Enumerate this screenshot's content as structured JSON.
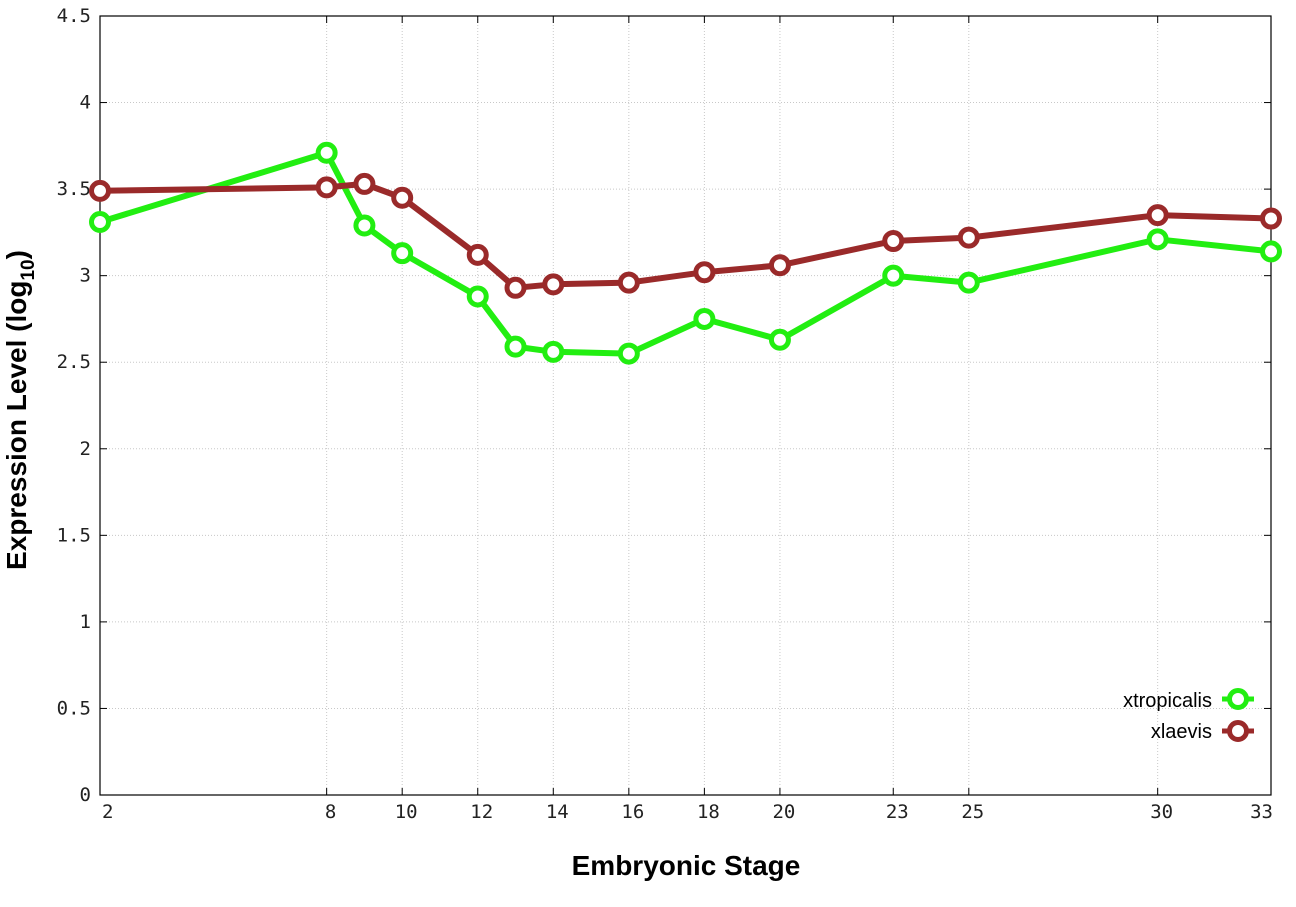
{
  "chart_data": {
    "type": "line",
    "xlabel": "Embryonic Stage",
    "ylabel_main": "Expression Level (log",
    "ylabel_sub": "10",
    "ylabel_close": ")",
    "xlim": [
      2,
      33
    ],
    "ylim": [
      0,
      4.5
    ],
    "x_ticks": [
      2,
      8,
      10,
      12,
      14,
      16,
      18,
      20,
      23,
      25,
      30,
      33
    ],
    "y_ticks": [
      0,
      0.5,
      1,
      1.5,
      2,
      2.5,
      3,
      3.5,
      4,
      4.5
    ],
    "x_tick_labels": [
      "2",
      "8",
      "10",
      "12",
      "14",
      "16",
      "18",
      "20",
      "23",
      "25",
      "30",
      "33"
    ],
    "y_tick_labels": [
      "0",
      "0.5",
      "1",
      "1.5",
      "2",
      "2.5",
      "3",
      "3.5",
      "4",
      "4.5"
    ],
    "grid": true,
    "legend_position": "bottom-right",
    "series": [
      {
        "name": "xtropicalis",
        "color": "#22ee11",
        "x": [
          2,
          8,
          9,
          10,
          12,
          13,
          14,
          16,
          18,
          20,
          23,
          25,
          30,
          33
        ],
        "y": [
          3.31,
          3.71,
          3.29,
          3.13,
          2.88,
          2.59,
          2.56,
          2.55,
          2.75,
          2.63,
          3.0,
          2.96,
          3.21,
          3.14
        ]
      },
      {
        "name": "xlaevis",
        "color": "#9a2a2a",
        "x": [
          2,
          8,
          9,
          10,
          12,
          13,
          14,
          16,
          18,
          20,
          23,
          25,
          30,
          33
        ],
        "y": [
          3.49,
          3.51,
          3.53,
          3.45,
          3.12,
          2.93,
          2.95,
          2.96,
          3.02,
          3.06,
          3.2,
          3.22,
          3.35,
          3.33
        ]
      }
    ]
  }
}
